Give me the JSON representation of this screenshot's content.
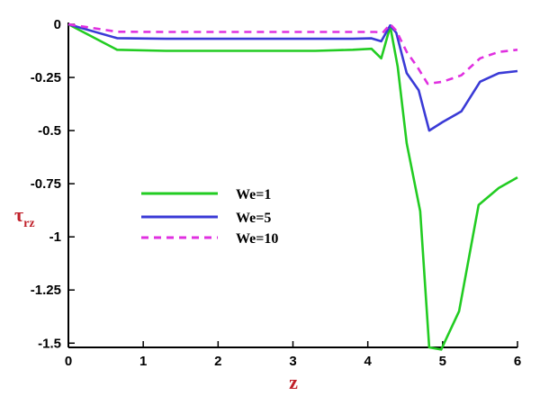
{
  "chart_data": {
    "type": "line",
    "xlabel": "z",
    "ylabel_main": "τ",
    "ylabel_sub": "rz",
    "xlim": [
      0,
      6
    ],
    "ylim": [
      -1.52,
      0
    ],
    "xticks": [
      0,
      1,
      2,
      3,
      4,
      5,
      6
    ],
    "xtick_labels": [
      "0",
      "1",
      "2",
      "3",
      "4",
      "5",
      "6"
    ],
    "yticks": [
      0,
      -0.25,
      -0.5,
      -0.75,
      -1,
      -1.25,
      -1.5
    ],
    "ytick_labels": [
      "0",
      "-0.25",
      "-0.5",
      "-0.75",
      "-1",
      "-1.25",
      "-1.5"
    ],
    "legend_position": "center-left",
    "series": [
      {
        "name": "We=1",
        "color": "#22cc22",
        "dash": "solid",
        "x": [
          0,
          0.65,
          1.3,
          2.0,
          2.7,
          3.3,
          3.8,
          4.05,
          4.18,
          4.3,
          4.4,
          4.52,
          4.7,
          4.82,
          4.98,
          5.22,
          5.48,
          5.75,
          6.0
        ],
        "y": [
          0,
          -0.12,
          -0.125,
          -0.125,
          -0.125,
          -0.125,
          -0.12,
          -0.115,
          -0.16,
          -0.01,
          -0.2,
          -0.56,
          -0.88,
          -1.52,
          -1.53,
          -1.35,
          -0.85,
          -0.77,
          -0.72
        ]
      },
      {
        "name": "We=5",
        "color": "#3a3ad6",
        "dash": "solid",
        "x": [
          0,
          0.65,
          1.3,
          2.0,
          2.7,
          3.3,
          3.8,
          4.05,
          4.18,
          4.3,
          4.38,
          4.52,
          4.68,
          4.82,
          5.0,
          5.25,
          5.5,
          5.75,
          6.0
        ],
        "y": [
          0,
          -0.065,
          -0.068,
          -0.068,
          -0.068,
          -0.068,
          -0.068,
          -0.066,
          -0.08,
          -0.005,
          -0.04,
          -0.23,
          -0.31,
          -0.5,
          -0.46,
          -0.41,
          -0.27,
          -0.23,
          -0.22
        ]
      },
      {
        "name": "We=10",
        "color": "#e030e0",
        "dash": "dashed",
        "x": [
          0,
          0.65,
          1.3,
          2.0,
          2.7,
          3.3,
          3.8,
          4.1,
          4.2,
          4.3,
          4.38,
          4.52,
          4.66,
          4.8,
          5.0,
          5.25,
          5.5,
          5.75,
          6.0
        ],
        "y": [
          0,
          -0.035,
          -0.036,
          -0.036,
          -0.036,
          -0.036,
          -0.036,
          -0.036,
          -0.04,
          0.0,
          -0.03,
          -0.13,
          -0.2,
          -0.28,
          -0.27,
          -0.24,
          -0.16,
          -0.13,
          -0.12
        ]
      }
    ]
  }
}
